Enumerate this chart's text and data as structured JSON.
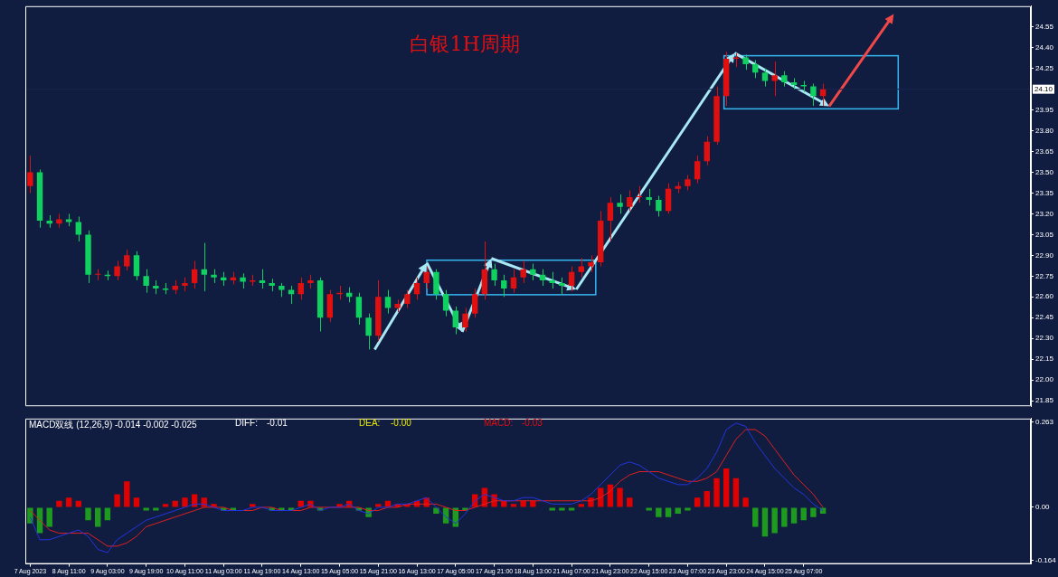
{
  "chart_data": [
    {
      "type": "candlestick",
      "title": "白银1H周期",
      "categories": [
        null,
        null,
        null,
        null,
        null,
        null,
        null,
        null,
        null,
        null,
        null,
        null,
        null,
        null,
        null,
        null,
        null,
        null,
        null,
        null,
        null,
        null,
        null,
        null,
        null,
        null,
        null,
        null,
        null,
        null,
        null,
        null,
        null,
        null,
        null,
        null,
        null,
        null,
        null,
        null,
        null,
        null,
        null,
        null,
        null,
        null,
        null,
        null,
        null,
        null,
        null,
        null,
        null,
        null,
        null,
        null,
        null,
        null,
        null,
        null,
        null,
        null,
        null,
        null,
        null,
        null,
        null,
        null,
        null,
        null,
        null,
        null,
        null,
        null,
        null,
        null,
        null,
        null,
        null,
        null,
        null,
        null,
        null,
        null,
        null,
        null,
        null,
        null,
        null,
        null,
        null,
        null,
        null,
        null,
        null,
        null,
        null,
        null,
        null,
        null,
        null,
        null,
        null,
        null
      ],
      "ohlc": [
        [
          23.4,
          23.62,
          23.35,
          23.5
        ],
        [
          23.5,
          23.52,
          23.1,
          23.15
        ],
        [
          23.15,
          23.19,
          23.1,
          23.13
        ],
        [
          23.13,
          23.2,
          23.1,
          23.16
        ],
        [
          23.16,
          23.2,
          23.11,
          23.14
        ],
        [
          23.14,
          23.18,
          23.0,
          23.05
        ],
        [
          23.05,
          23.08,
          22.7,
          22.76
        ],
        [
          22.76,
          22.8,
          22.72,
          22.76
        ],
        [
          22.76,
          22.79,
          22.72,
          22.75
        ],
        [
          22.75,
          22.86,
          22.72,
          22.82
        ],
        [
          22.82,
          22.94,
          22.79,
          22.9
        ],
        [
          22.9,
          22.93,
          22.72,
          22.75
        ],
        [
          22.75,
          22.8,
          22.63,
          22.68
        ],
        [
          22.68,
          22.72,
          22.62,
          22.66
        ],
        [
          22.66,
          22.7,
          22.62,
          22.65
        ],
        [
          22.65,
          22.72,
          22.62,
          22.68
        ],
        [
          22.68,
          22.74,
          22.64,
          22.7
        ],
        [
          22.7,
          22.86,
          22.66,
          22.8
        ],
        [
          22.8,
          22.99,
          22.64,
          22.76
        ],
        [
          22.76,
          22.8,
          22.7,
          22.74
        ],
        [
          22.74,
          22.78,
          22.68,
          22.72
        ],
        [
          22.72,
          22.78,
          22.69,
          22.74
        ],
        [
          22.74,
          22.77,
          22.66,
          22.71
        ],
        [
          22.71,
          22.76,
          22.68,
          22.72
        ],
        [
          22.72,
          22.8,
          22.66,
          22.7
        ],
        [
          22.7,
          22.73,
          22.64,
          22.68
        ],
        [
          22.68,
          22.7,
          22.6,
          22.65
        ],
        [
          22.65,
          22.68,
          22.55,
          22.62
        ],
        [
          22.62,
          22.74,
          22.58,
          22.7
        ],
        [
          22.7,
          22.76,
          22.66,
          22.72
        ],
        [
          22.72,
          22.74,
          22.35,
          22.45
        ],
        [
          22.45,
          22.65,
          22.42,
          22.62
        ],
        [
          22.62,
          22.68,
          22.58,
          22.63
        ],
        [
          22.63,
          22.67,
          22.56,
          22.6
        ],
        [
          22.6,
          22.63,
          22.4,
          22.45
        ],
        [
          22.45,
          22.48,
          22.22,
          22.32
        ],
        [
          22.32,
          22.72,
          22.28,
          22.6
        ],
        [
          22.6,
          22.65,
          22.48,
          22.52
        ],
        [
          22.52,
          22.58,
          22.49,
          22.55
        ],
        [
          22.55,
          22.65,
          22.52,
          22.62
        ],
        [
          22.62,
          22.74,
          22.58,
          22.7
        ],
        [
          22.7,
          22.82,
          22.66,
          22.78
        ],
        [
          22.78,
          22.8,
          22.58,
          22.62
        ],
        [
          22.62,
          22.65,
          22.46,
          22.5
        ],
        [
          22.5,
          22.53,
          22.33,
          22.38
        ],
        [
          22.38,
          22.52,
          22.35,
          22.48
        ],
        [
          22.48,
          22.66,
          22.45,
          22.62
        ],
        [
          22.62,
          23.0,
          22.58,
          22.8
        ],
        [
          22.8,
          22.84,
          22.68,
          22.72
        ],
        [
          22.72,
          22.76,
          22.6,
          22.66
        ],
        [
          22.66,
          22.8,
          22.63,
          22.74
        ],
        [
          22.74,
          22.86,
          22.7,
          22.8
        ],
        [
          22.8,
          22.84,
          22.72,
          22.76
        ],
        [
          22.76,
          22.8,
          22.68,
          22.72
        ],
        [
          22.72,
          22.78,
          22.66,
          22.7
        ],
        [
          22.7,
          22.74,
          22.62,
          22.68
        ],
        [
          22.68,
          22.82,
          22.64,
          22.78
        ],
        [
          22.78,
          22.88,
          22.74,
          22.82
        ],
        [
          22.82,
          22.9,
          22.78,
          22.85
        ],
        [
          22.85,
          23.22,
          22.82,
          23.15
        ],
        [
          23.15,
          23.32,
          23.0,
          23.28
        ],
        [
          23.28,
          23.34,
          23.2,
          23.25
        ],
        [
          23.25,
          23.37,
          23.22,
          23.32
        ],
        [
          23.32,
          23.4,
          23.28,
          23.32
        ],
        [
          23.32,
          23.38,
          23.26,
          23.3
        ],
        [
          23.3,
          23.33,
          23.18,
          23.22
        ],
        [
          23.22,
          23.42,
          23.2,
          23.38
        ],
        [
          23.38,
          23.43,
          23.35,
          23.4
        ],
        [
          23.4,
          23.48,
          23.37,
          23.45
        ],
        [
          23.45,
          23.62,
          23.42,
          23.58
        ],
        [
          23.58,
          23.76,
          23.55,
          23.72
        ],
        [
          23.72,
          24.12,
          23.7,
          24.05
        ],
        [
          24.05,
          24.37,
          23.98,
          24.32
        ],
        [
          24.32,
          24.36,
          24.26,
          24.33
        ],
        [
          24.33,
          24.35,
          24.24,
          24.28
        ],
        [
          24.28,
          24.31,
          24.18,
          24.22
        ],
        [
          24.22,
          24.25,
          24.12,
          24.16
        ],
        [
          24.16,
          24.3,
          24.05,
          24.2
        ],
        [
          24.2,
          24.23,
          24.12,
          24.15
        ],
        [
          24.15,
          24.18,
          24.1,
          24.13
        ],
        [
          24.13,
          24.16,
          24.08,
          24.12
        ],
        [
          24.12,
          24.14,
          23.98,
          24.05
        ],
        [
          24.05,
          24.14,
          23.98,
          24.1
        ],
        null,
        null,
        null,
        null,
        null,
        null,
        null,
        null,
        null,
        null,
        null,
        null,
        null,
        null,
        null,
        null,
        null,
        null,
        null,
        null,
        null
      ],
      "ylim": [
        21.81,
        24.7
      ],
      "yticks": [
        21.85,
        {
          "value": 22,
          "label": "22.00"
        },
        22.15,
        {
          "value": 22.3,
          "label": "22.30"
        },
        22.45,
        {
          "value": 22.6,
          "label": "22.60"
        },
        22.75,
        {
          "value": 22.9,
          "label": "22.90"
        },
        23.05,
        {
          "value": 23.2,
          "label": "23.20"
        },
        23.35,
        {
          "value": 23.5,
          "label": "23.50"
        },
        23.65,
        {
          "value": 23.8,
          "label": "23.80"
        },
        23.95,
        24.25,
        {
          "value": 24.4,
          "label": "24.40"
        },
        24.55
      ],
      "ref_lines": [
        {
          "axis": "y",
          "value": 24.1,
          "label": "24.10",
          "color": "#1a2650"
        }
      ],
      "tick_labels": "y",
      "grid": false
    },
    {
      "type": "bar",
      "title": "MACD双线 (12,26,9) -0.014 -0.002 -0.025",
      "categories": [
        "7 Aug 2023",
        null,
        null,
        null,
        "8 Aug 11:00",
        null,
        null,
        null,
        "9 Aug 03:00",
        null,
        null,
        null,
        "9 Aug 19:00",
        null,
        null,
        null,
        "10 Aug 11:00",
        null,
        null,
        null,
        "11 Aug 03:00",
        null,
        null,
        null,
        "11 Aug 19:00",
        null,
        null,
        null,
        "14 Aug 13:00",
        null,
        null,
        null,
        "15 Aug 05:00",
        null,
        null,
        null,
        "15 Aug 21:00",
        null,
        null,
        null,
        "16 Aug 13:00",
        null,
        null,
        null,
        "17 Aug 05:00",
        null,
        null,
        null,
        "17 Aug 21:00",
        null,
        null,
        null,
        "18 Aug 13:00",
        null,
        null,
        null,
        "21 Aug 07:00",
        null,
        null,
        null,
        "21 Aug 23:00",
        null,
        null,
        null,
        "22 Aug 15:00",
        null,
        null,
        null,
        "23 Aug 07:00",
        null,
        null,
        null,
        "23 Aug 23:00",
        null,
        null,
        null,
        "24 Aug 15:00",
        null,
        null,
        null,
        "25 Aug 07:00",
        null,
        null,
        null,
        null,
        null,
        null,
        null,
        null,
        null,
        null,
        null,
        null,
        null,
        null,
        null,
        null,
        null,
        null,
        null,
        null,
        null,
        null,
        null
      ],
      "series": [
        {
          "type": "bar",
          "values": [
            -0.05,
            -0.08,
            -0.06,
            0.02,
            0.03,
            0.02,
            -0.04,
            -0.06,
            -0.04,
            0.04,
            0.08,
            0.03,
            -0.01,
            -0.01,
            0.01,
            0.02,
            0.03,
            0.04,
            0.03,
            0.01,
            -0.01,
            -0.01,
            0,
            0.01,
            0,
            -0.01,
            -0.01,
            -0.01,
            0.02,
            0.02,
            -0.01,
            0,
            0.01,
            0.02,
            -0.01,
            -0.03,
            0.01,
            0.02,
            0.01,
            0.01,
            0.02,
            0.03,
            -0.02,
            -0.05,
            -0.06,
            -0.01,
            0.04,
            0.06,
            0.04,
            0.02,
            0.01,
            0.02,
            0.02,
            0,
            -0.01,
            -0.01,
            -0.01,
            0.01,
            0.03,
            0.06,
            0.07,
            0.06,
            0.03,
            0,
            -0.01,
            -0.03,
            -0.03,
            -0.02,
            -0.01,
            0.03,
            0.05,
            0.09,
            0.12,
            0.09,
            0.03,
            -0.06,
            -0.09,
            -0.08,
            -0.06,
            -0.05,
            -0.04,
            -0.03,
            -0.02,
            null,
            null,
            null,
            null,
            null,
            null,
            null,
            null,
            null,
            null,
            null,
            null,
            null,
            null,
            null,
            null,
            null,
            null,
            null,
            null,
            null
          ],
          "colors": [
            "#1e9b1e",
            "#1e9b1e",
            "#1e9b1e",
            "#e00000",
            "#e00000",
            "#e00000",
            "#1e9b1e",
            "#1e9b1e",
            "#1e9b1e",
            "#e00000",
            "#e00000",
            "#e00000",
            "#1e9b1e",
            "#1e9b1e",
            "#e00000",
            "#e00000",
            "#e00000",
            "#e00000",
            "#e00000",
            "#e00000",
            "#1e9b1e",
            "#1e9b1e",
            "#1e9b1e",
            "#e00000",
            "#1e9b1e",
            "#1e9b1e",
            "#1e9b1e",
            "#1e9b1e",
            "#e00000",
            "#e00000",
            "#1e9b1e",
            "#1e9b1e",
            "#e00000",
            "#e00000",
            "#1e9b1e",
            "#1e9b1e",
            "#e00000",
            "#e00000",
            "#e00000",
            "#e00000",
            "#e00000",
            "#e00000",
            "#1e9b1e",
            "#1e9b1e",
            "#1e9b1e",
            "#1e9b1e",
            "#e00000",
            "#e00000",
            "#e00000",
            "#e00000",
            "#e00000",
            "#e00000",
            "#e00000",
            "#1e9b1e",
            "#1e9b1e",
            "#1e9b1e",
            "#1e9b1e",
            "#e00000",
            "#e00000",
            "#e00000",
            "#e00000",
            "#e00000",
            "#e00000",
            "#1e9b1e",
            "#1e9b1e",
            "#1e9b1e",
            "#1e9b1e",
            "#1e9b1e",
            "#1e9b1e",
            "#e00000",
            "#e00000",
            "#e00000",
            "#e00000",
            "#e00000",
            "#e00000",
            "#1e9b1e",
            "#1e9b1e",
            "#1e9b1e",
            "#1e9b1e",
            "#1e9b1e",
            "#1e9b1e",
            "#1e9b1e",
            "#1e9b1e",
            null,
            null,
            null,
            null,
            null,
            null,
            null,
            null,
            null,
            null,
            null,
            null,
            null,
            null,
            null,
            null,
            null,
            null,
            null,
            null,
            null
          ]
        },
        {
          "type": "line",
          "color": "#2335e0",
          "values": [
            -0.03,
            -0.1,
            -0.1,
            -0.09,
            -0.08,
            -0.07,
            -0.09,
            -0.13,
            -0.14,
            -0.1,
            -0.08,
            -0.06,
            -0.04,
            -0.03,
            -0.02,
            -0.01,
            0,
            0.01,
            0.01,
            0,
            -0.01,
            -0.01,
            -0.01,
            0,
            0,
            -0.01,
            -0.01,
            -0.01,
            0,
            0.01,
            -0.01,
            0,
            0,
            0.01,
            -0.01,
            -0.02,
            0,
            0,
            0.01,
            0.01,
            0.02,
            0.03,
            0,
            -0.03,
            -0.05,
            -0.02,
            0.02,
            0.04,
            0.03,
            0.02,
            0.02,
            0.03,
            0.03,
            0.02,
            0.01,
            0.01,
            0.01,
            0.02,
            0.04,
            0.07,
            0.1,
            0.13,
            0.14,
            0.13,
            0.11,
            0.09,
            0.08,
            0.07,
            0.07,
            0.09,
            0.12,
            0.17,
            0.24,
            0.26,
            0.25,
            0.2,
            0.16,
            0.12,
            0.09,
            0.06,
            0.04,
            0.01,
            -0.01,
            null,
            null,
            null,
            null,
            null,
            null,
            null,
            null,
            null,
            null,
            null,
            null,
            null,
            null,
            null,
            null,
            null,
            null,
            null,
            null,
            null
          ]
        },
        {
          "type": "line",
          "color": "#e02020",
          "values": [
            -0.01,
            -0.04,
            -0.07,
            -0.08,
            -0.08,
            -0.08,
            -0.08,
            -0.1,
            -0.12,
            -0.12,
            -0.11,
            -0.09,
            -0.06,
            -0.05,
            -0.04,
            -0.03,
            -0.02,
            -0.01,
            0,
            0,
            0,
            -0.01,
            -0.01,
            -0.01,
            0,
            0,
            -0.01,
            -0.01,
            -0.01,
            0,
            0,
            0,
            0,
            0,
            0,
            -0.01,
            -0.01,
            0,
            0,
            0.01,
            0.01,
            0.01,
            0.01,
            0,
            -0.01,
            -0.01,
            0,
            0.01,
            0.02,
            0.02,
            0.02,
            0.02,
            0.02,
            0.02,
            0.02,
            0.02,
            0.02,
            0.02,
            0.02,
            0.03,
            0.05,
            0.08,
            0.1,
            0.11,
            0.11,
            0.11,
            0.1,
            0.09,
            0.08,
            0.08,
            0.09,
            0.11,
            0.16,
            0.21,
            0.24,
            0.24,
            0.22,
            0.18,
            0.14,
            0.1,
            0.07,
            0.04,
            0,
            null,
            null,
            null,
            null,
            null,
            null,
            null,
            null,
            null,
            null,
            null,
            null,
            null,
            null,
            null,
            null,
            null,
            null,
            null,
            null,
            null
          ]
        }
      ],
      "ylim": [
        -0.175,
        0.274
      ],
      "yticks": [
        0.263,
        {
          "value": 0,
          "label": "0.00"
        },
        -0.164
      ],
      "annotations": [
        "DIFF:",
        "-0.01",
        "DEA:",
        "-0.00",
        "MACD:",
        "-0.03"
      ],
      "grid": false,
      "marker": "none"
    }
  ]
}
